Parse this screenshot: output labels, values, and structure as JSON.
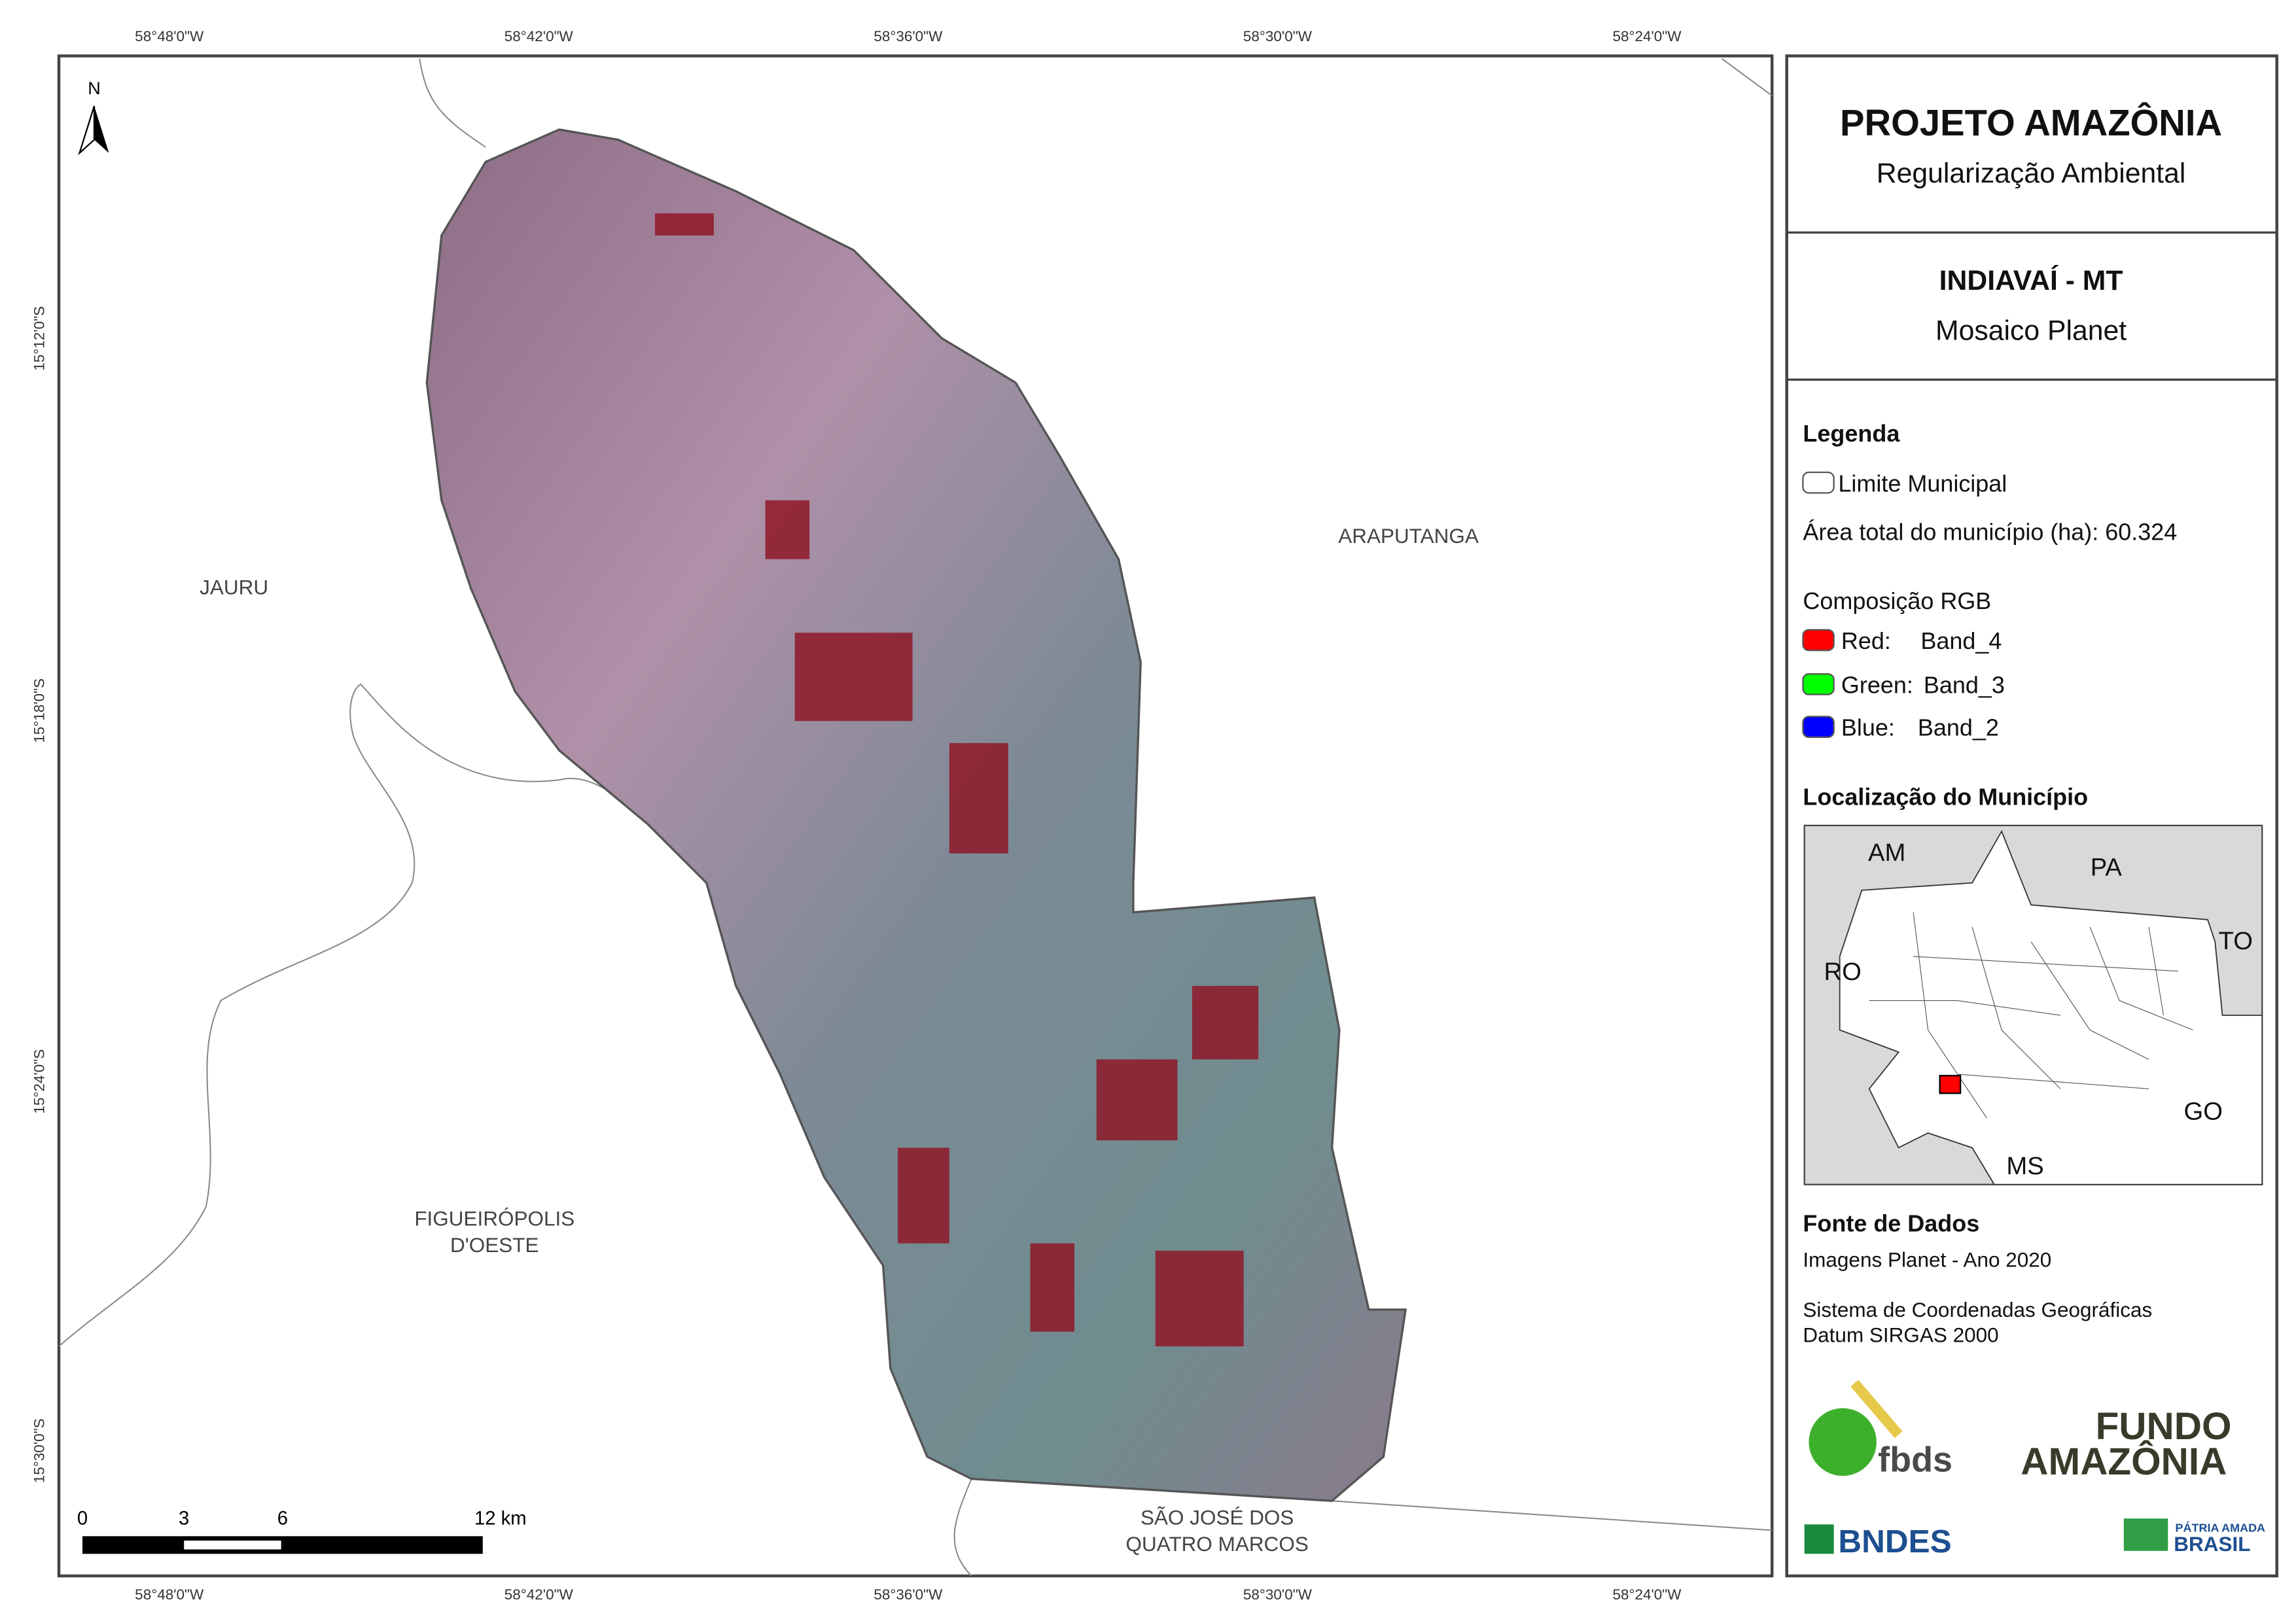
{
  "map": {
    "lon_ticks": [
      "58°48'0\"W",
      "58°42'0\"W",
      "58°36'0\"W",
      "58°30'0\"W",
      "58°24'0\"W"
    ],
    "lat_ticks": [
      "15°12'0\"S",
      "15°18'0\"S",
      "15°24'0\"S",
      "15°30'0\"S"
    ],
    "north": "N",
    "places": [
      "JAURU",
      "ARAPUTANGA",
      "FIGUEIRÓPOLIS",
      "D'OESTE",
      "SÃO JOSÉ DOS",
      "QUATRO MARCOS"
    ],
    "scale_labels": [
      "0",
      "3",
      "6",
      "12 km"
    ]
  },
  "panel": {
    "title": "PROJETO AMAZÔNIA",
    "subtitle": "Regularização Ambiental",
    "municipality": "INDIAVAÍ - MT",
    "mosaic": "Mosaico Planet",
    "legend": {
      "title": "Legenda",
      "boundary": "Limite Municipal",
      "area": "Área total do município (ha): 60.324",
      "rgb_title": "Composição RGB",
      "bands": [
        {
          "channel": "Red:",
          "band": "Band_4"
        },
        {
          "channel": "Green:",
          "band": "Band_3"
        },
        {
          "channel": "Blue:",
          "band": "Band_2"
        }
      ]
    },
    "location": {
      "title": "Localização do Município",
      "states": [
        "AM",
        "PA",
        "TO",
        "RO",
        "GO",
        "MS"
      ]
    },
    "sources": {
      "title": "Fonte de Dados",
      "lines": [
        "Imagens Planet - Ano 2020",
        "Sistema de Coordenadas Geográficas",
        "Datum SIRGAS 2000"
      ]
    },
    "logos": [
      "fbds",
      "FUNDO",
      "AMAZÔNIA",
      "BNDES",
      "PÁTRIA AMADA",
      "BRASIL"
    ]
  }
}
